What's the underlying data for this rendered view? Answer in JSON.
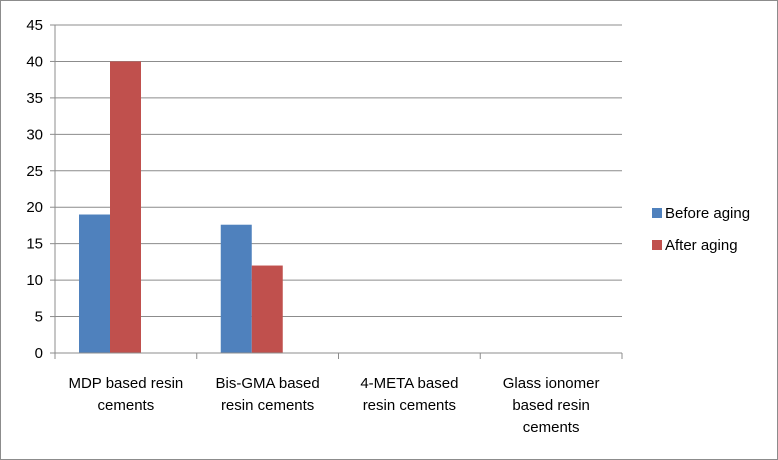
{
  "chart_data": {
    "type": "bar",
    "categories": [
      "MDP based resin cements",
      "Bis-GMA based resin cements",
      "4-META based resin cements",
      "Glass ionomer based resin cements"
    ],
    "category_lines": [
      [
        "MDP based resin",
        "cements"
      ],
      [
        "Bis-GMA based",
        "resin cements"
      ],
      [
        "4-META based",
        "resin cements"
      ],
      [
        "Glass ionomer",
        "based resin",
        "cements"
      ]
    ],
    "series": [
      {
        "name": "Before aging",
        "values": [
          19,
          17.6,
          0,
          0
        ],
        "color": "#4f81bd"
      },
      {
        "name": "After aging",
        "values": [
          40,
          12,
          0,
          0
        ],
        "color": "#c0504d"
      }
    ],
    "ylim": [
      0,
      45
    ],
    "yticks": [
      0,
      5,
      10,
      15,
      20,
      25,
      30,
      35,
      40,
      45
    ],
    "grid": true,
    "legend_position": "right",
    "title": "",
    "xlabel": "",
    "ylabel": ""
  }
}
